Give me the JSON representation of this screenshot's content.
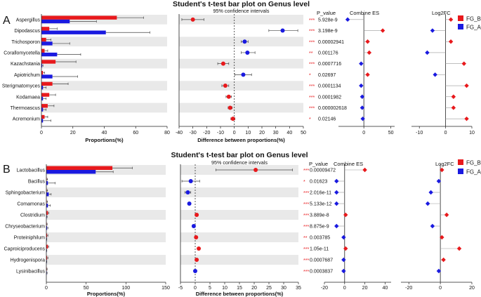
{
  "legend": [
    {
      "name": "FG_B",
      "color": "#e8191c"
    },
    {
      "name": "FG_A",
      "color": "#1a1ae0"
    }
  ],
  "colors": {
    "FG_B": "#e8191c",
    "FG_A": "#1a1ae0",
    "stripe": "#e9e9e9",
    "error": "#444444"
  },
  "chart_data": [
    {
      "type": "bar",
      "panel_label": "A",
      "title": "Student's t-test bar plot on Genus level",
      "ci_title": "95% confidence intervals",
      "p_title": "P_value",
      "es_title": "Combine ES",
      "fc_title": "Log2FC",
      "xlabel_prop": "Proportions(%)",
      "xlabel_diff": "Difference between proportions(%)",
      "categories": [
        "Aspergillus",
        "Dipodascus",
        "Trichosporon",
        "Corallomycetella",
        "Kazachstania",
        "Apiotrichum",
        "Sterigmatomyces",
        "Kodamaea",
        "Thermoascus",
        "Acremonium"
      ],
      "series": [
        {
          "name": "FG_B",
          "values": [
            48,
            5,
            3,
            2,
            9,
            1,
            7,
            5,
            4,
            2
          ],
          "errors": [
            17,
            5,
            3,
            2,
            13,
            1,
            10,
            4,
            4,
            2
          ]
        },
        {
          "name": "FG_A",
          "values": [
            18,
            41,
            7,
            10,
            0.5,
            7,
            1,
            1,
            1,
            1
          ],
          "errors": [
            17,
            28,
            11,
            15,
            0.5,
            16,
            2,
            2,
            2,
            5
          ]
        }
      ],
      "prop_ticks": [
        0,
        20,
        40,
        60,
        80
      ],
      "prop_xlim": [
        0,
        80
      ],
      "diff": [
        {
          "est": -30,
          "lo": -38,
          "hi": -22,
          "favors": "FG_B"
        },
        {
          "est": 35,
          "lo": 25,
          "hi": 46,
          "favors": "FG_A"
        },
        {
          "est": 7.5,
          "lo": 5,
          "hi": 10,
          "favors": "FG_A"
        },
        {
          "est": 9.5,
          "lo": 5,
          "hi": 15,
          "favors": "FG_A"
        },
        {
          "est": -8,
          "lo": -12,
          "hi": -4,
          "favors": "FG_B"
        },
        {
          "est": 6.5,
          "lo": 0.5,
          "hi": 12.5,
          "favors": "FG_A"
        },
        {
          "est": -6.5,
          "lo": -9,
          "hi": -4,
          "favors": "FG_B"
        },
        {
          "est": -4,
          "lo": -6,
          "hi": -2,
          "favors": "FG_B"
        },
        {
          "est": -3,
          "lo": -4.5,
          "hi": -1.5,
          "favors": "FG_B"
        },
        {
          "est": -1,
          "lo": -2.5,
          "hi": 0.5,
          "favors": "FG_B"
        }
      ],
      "diff_ticks": [
        -40,
        -30,
        -20,
        -10,
        0,
        10,
        20,
        30,
        40,
        50
      ],
      "diff_xlim": [
        -40,
        50
      ],
      "stars": [
        "***",
        "***",
        "***",
        "**",
        "***",
        "*",
        "***",
        "***",
        "***",
        "*"
      ],
      "p_values": [
        "5.928e-9",
        "3.198e-9",
        "0.00002941",
        "0.001176",
        "0.0007716",
        "0.02697",
        "0.0001134",
        "0.0001982",
        "0.000002618",
        "0.02146"
      ],
      "es": [
        {
          "value": -30,
          "group": "FG_A"
        },
        {
          "value": 35,
          "group": "FG_B"
        },
        {
          "value": 7,
          "group": "FG_B"
        },
        {
          "value": 10,
          "group": "FG_B"
        },
        {
          "value": -5,
          "group": "FG_A"
        },
        {
          "value": 7,
          "group": "FG_B"
        },
        {
          "value": -5,
          "group": "FG_A"
        },
        {
          "value": -3,
          "group": "FG_A"
        },
        {
          "value": -3,
          "group": "FG_A"
        },
        {
          "value": -2,
          "group": "FG_A"
        }
      ],
      "es_ticks": [
        0,
        50
      ],
      "es_xlim": [
        -47,
        57
      ],
      "fc": [
        {
          "value": 2,
          "group": "FG_B"
        },
        {
          "value": -5,
          "group": "FG_A"
        },
        {
          "value": 2,
          "group": "FG_B"
        },
        {
          "value": -7,
          "group": "FG_A"
        },
        {
          "value": 7,
          "group": "FG_B"
        },
        {
          "value": -4,
          "group": "FG_A"
        },
        {
          "value": 8,
          "group": "FG_B"
        },
        {
          "value": 3,
          "group": "FG_B"
        },
        {
          "value": 3,
          "group": "FG_B"
        },
        {
          "value": 8,
          "group": "FG_B"
        }
      ],
      "fc_ticks": [
        -10,
        0,
        10
      ],
      "fc_xlim": [
        -13,
        10
      ]
    },
    {
      "type": "bar",
      "panel_label": "B",
      "title": "Student's t-test bar plot on Genus level",
      "ci_title": "95% confidence intervals",
      "p_title": "P_value",
      "es_title": "Combine ES",
      "fc_title": "Log2FC",
      "xlabel_prop": "Proportions(%)",
      "xlabel_diff": "Difference between proportions(%)",
      "categories": [
        "Lactobacillus",
        "Bacillus",
        "Sphingobacterium",
        "Comamonas",
        "Clostridium",
        "Chryseobacterium",
        "Proteiniphilum",
        "Caproiciproducens",
        "Hydrogenispora",
        "Lysinibacillus"
      ],
      "series": [
        {
          "name": "FG_B",
          "values": [
            83,
            0.5,
            0.5,
            0.5,
            2,
            0.5,
            1,
            2,
            1,
            0.5
          ],
          "errors": [
            25,
            1,
            1,
            1,
            1,
            0.5,
            1,
            1,
            1,
            0.5
          ]
        },
        {
          "name": "FG_A",
          "values": [
            62,
            2,
            3,
            2,
            0.5,
            1,
            0.3,
            0.3,
            0.3,
            0.5
          ],
          "errors": [
            22,
            9,
            3,
            3,
            0.5,
            1,
            0.3,
            0.3,
            0.3,
            0.5
          ]
        }
      ],
      "prop_ticks": [
        0,
        50,
        100,
        150
      ],
      "prop_xlim": [
        0,
        150
      ],
      "diff": [
        {
          "est": 20.5,
          "lo": 7,
          "hi": 33,
          "favors": "FG_B"
        },
        {
          "est": -1.5,
          "lo": -4.5,
          "hi": 1.5,
          "favors": "FG_A"
        },
        {
          "est": -2.5,
          "lo": -3.5,
          "hi": -1.5,
          "favors": "FG_A"
        },
        {
          "est": -2,
          "lo": -2.5,
          "hi": -1.5,
          "favors": "FG_A"
        },
        {
          "est": 0.5,
          "lo": 0,
          "hi": 1,
          "favors": "FG_B"
        },
        {
          "est": -0.5,
          "lo": -1,
          "hi": 0,
          "favors": "FG_A"
        },
        {
          "est": 0.3,
          "lo": 0,
          "hi": 0.6,
          "favors": "FG_B"
        },
        {
          "est": 1.2,
          "lo": 0.8,
          "hi": 1.6,
          "favors": "FG_B"
        },
        {
          "est": 0.5,
          "lo": 0.2,
          "hi": 0.8,
          "favors": "FG_B"
        },
        {
          "est": 0,
          "lo": -0.3,
          "hi": 0.3,
          "favors": "FG_A"
        }
      ],
      "diff_ticks": [
        -5,
        0,
        5,
        10,
        15,
        20,
        25,
        30,
        35
      ],
      "diff_xlim": [
        -5,
        35
      ],
      "stars": [
        "***",
        "*",
        "***",
        "***",
        "***",
        "***",
        "**",
        "***",
        "***",
        "***"
      ],
      "p_values": [
        "0.00009472",
        "0.01623",
        "2.016e-11",
        "5.133e-12",
        "3.889e-8",
        "8.875e-9",
        "0.003785",
        "1.05e-11",
        "0.0007687",
        "0.0003837"
      ],
      "es": [
        {
          "value": 20,
          "group": "FG_B"
        },
        {
          "value": -8,
          "group": "FG_A"
        },
        {
          "value": -8,
          "group": "FG_A"
        },
        {
          "value": -8,
          "group": "FG_A"
        },
        {
          "value": 1,
          "group": "FG_B"
        },
        {
          "value": -8,
          "group": "FG_A"
        },
        {
          "value": -1,
          "group": "FG_A"
        },
        {
          "value": 1,
          "group": "FG_B"
        },
        {
          "value": -1,
          "group": "FG_A"
        },
        {
          "value": -1,
          "group": "FG_A"
        }
      ],
      "es_ticks": [
        -20,
        0,
        20,
        40
      ],
      "es_xlim": [
        -20,
        46
      ],
      "fc": [
        {
          "value": 1,
          "group": "FG_B"
        },
        {
          "value": -1,
          "group": "FG_A"
        },
        {
          "value": -6,
          "group": "FG_A"
        },
        {
          "value": -8,
          "group": "FG_A"
        },
        {
          "value": 4,
          "group": "FG_B"
        },
        {
          "value": -5,
          "group": "FG_A"
        },
        {
          "value": 1,
          "group": "FG_B"
        },
        {
          "value": 12,
          "group": "FG_B"
        },
        {
          "value": 2,
          "group": "FG_B"
        },
        {
          "value": -1,
          "group": "FG_A"
        }
      ],
      "fc_ticks": [
        -20,
        0,
        20
      ],
      "fc_xlim": [
        -25,
        20
      ]
    }
  ]
}
